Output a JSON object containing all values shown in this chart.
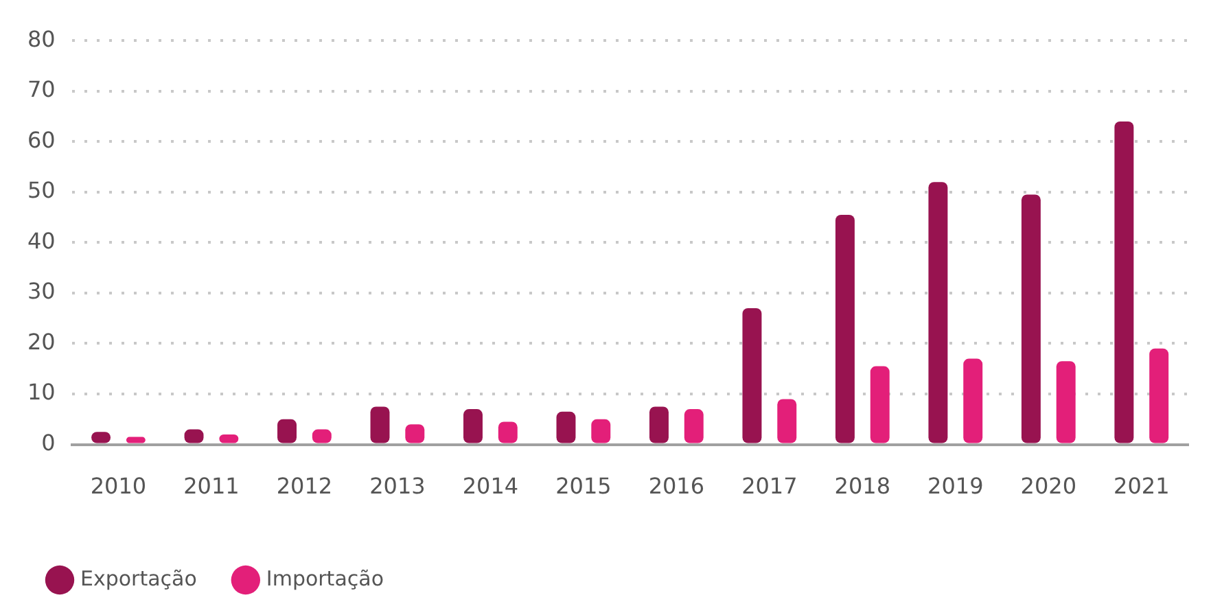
{
  "chart_data": {
    "type": "bar",
    "categories": [
      "2010",
      "2011",
      "2012",
      "2013",
      "2014",
      "2015",
      "2016",
      "2017",
      "2018",
      "2019",
      "2020",
      "2021"
    ],
    "series": [
      {
        "name": "Exportação",
        "color": "#981350",
        "values": [
          2.5,
          3,
          5,
          7.5,
          7,
          6.5,
          7.5,
          27,
          45.5,
          52,
          49.5,
          64
        ]
      },
      {
        "name": "Importação",
        "color": "#e31f79",
        "values": [
          1.5,
          2,
          3,
          4,
          4.5,
          5,
          7,
          9,
          15.5,
          17,
          16.5,
          19
        ]
      }
    ],
    "ylim": [
      0,
      80
    ],
    "yticks": [
      0,
      10,
      20,
      30,
      40,
      50,
      60,
      70,
      80
    ],
    "grid": "y",
    "legend": "bottom left"
  }
}
